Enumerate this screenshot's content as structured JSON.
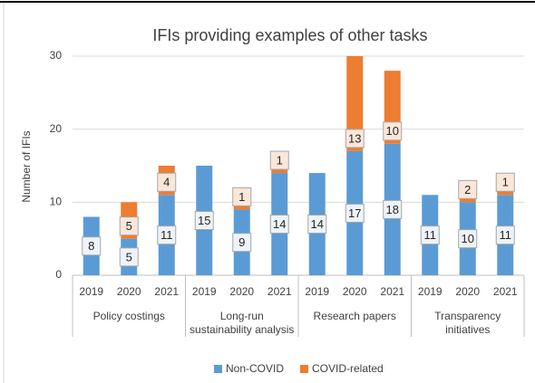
{
  "chart_data": {
    "type": "stacked_bar",
    "title": "IFIs providing examples of other tasks",
    "y_label": "Number of IFIs",
    "categories": [
      "2019",
      "2020",
      "2021",
      "2019",
      "2020",
      "2021",
      "2019",
      "2020",
      "2021",
      "2019",
      "2020",
      "2021"
    ],
    "groups": [
      "Policy costings",
      "Long-run sustainability analysis",
      "Research papers",
      "Transparency initiatives"
    ],
    "series": [
      {
        "name": "Non-COVID",
        "color": "#5b9bd5",
        "values": [
          8,
          5,
          11,
          15,
          9,
          14,
          14,
          17,
          18,
          11,
          10,
          11
        ]
      },
      {
        "name": "COVID-related",
        "color": "#ed7d31",
        "values": [
          null,
          5,
          4,
          null,
          1,
          1,
          null,
          13,
          10,
          null,
          2,
          1
        ]
      }
    ],
    "ylim": [
      0,
      30
    ],
    "yticks": [
      0,
      10,
      20,
      30
    ],
    "grid": true,
    "legend": "bottom"
  }
}
